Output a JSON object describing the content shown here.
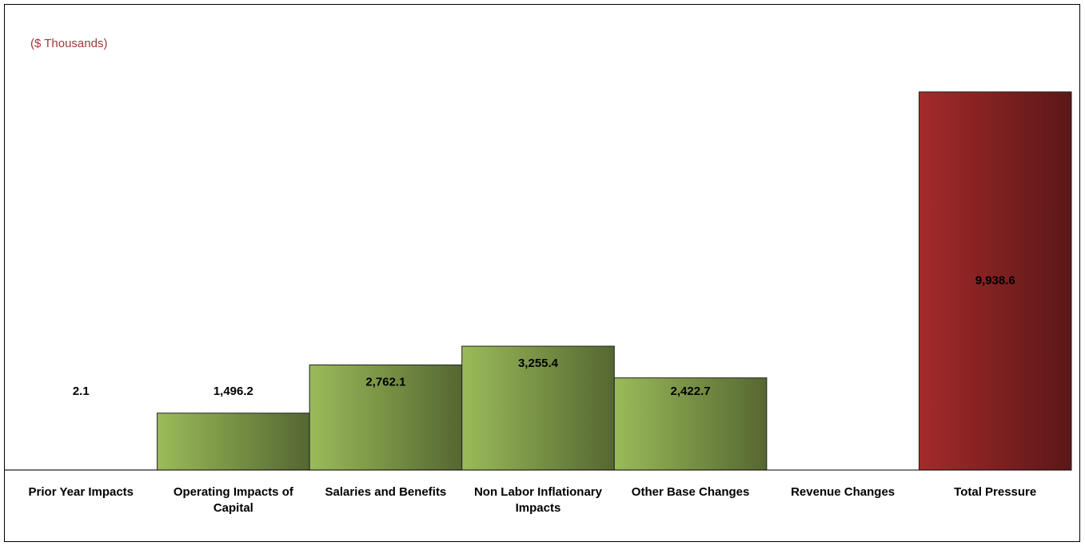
{
  "chart_data": {
    "type": "bar",
    "subtitle": "($ Thousands)",
    "categories": [
      "Prior Year Impacts",
      "Operating Impacts of Capital",
      "Salaries and Benefits",
      "Non Labor Inflationary Impacts",
      "Other Base Changes",
      "Revenue Changes",
      "Total Pressure"
    ],
    "values": [
      2.1,
      1496.2,
      2762.1,
      3255.4,
      2422.7,
      null,
      9938.6
    ],
    "value_labels": [
      "2.1",
      "1,496.2",
      "2,762.1",
      "3,255.4",
      "2,422.7",
      null,
      "9,938.6"
    ],
    "colors": [
      "#9bbb59",
      "#9bbb59",
      "#9bbb59",
      "#9bbb59",
      "#9bbb59",
      "#9bbb59",
      "#a52a2a"
    ],
    "ylim": [
      0,
      10000
    ],
    "grid": false
  }
}
